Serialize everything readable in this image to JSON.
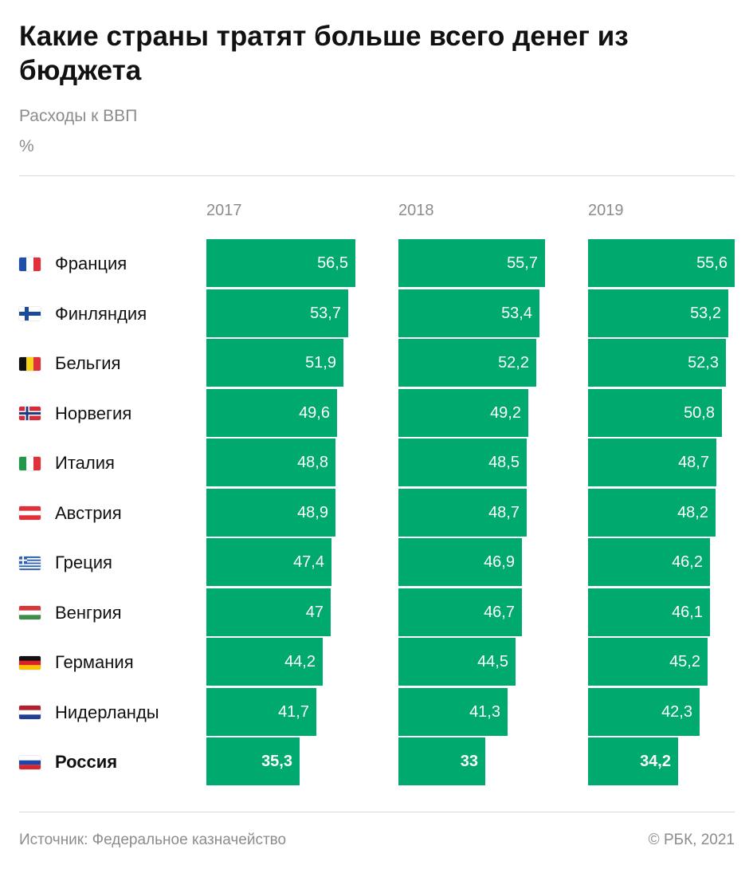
{
  "header": {
    "title": "Какие страны тратят больше всего денег из бюджета",
    "subtitle": "Расходы к ВВП",
    "unit": "%"
  },
  "footer": {
    "source": "Источник: Федеральное казначейство",
    "copyright": "© РБК, 2021"
  },
  "colors": {
    "bar": "#00a96e",
    "text_muted": "#8c8c8c"
  },
  "chart_data": {
    "type": "bar",
    "orientation": "horizontal",
    "layout": "small-multiples",
    "categories": [
      "Франция",
      "Финляндия",
      "Бельгия",
      "Норвегия",
      "Италия",
      "Австрия",
      "Греция",
      "Венгрия",
      "Германия",
      "Нидерланды",
      "Россия"
    ],
    "highlight": "Россия",
    "flags": [
      "flag-france-icon",
      "flag-finland-icon",
      "flag-belgium-icon",
      "flag-norway-icon",
      "flag-italy-icon",
      "flag-austria-icon",
      "flag-greece-icon",
      "flag-hungary-icon",
      "flag-germany-icon",
      "flag-netherlands-icon",
      "flag-russia-icon"
    ],
    "series": [
      {
        "name": "2017",
        "values": [
          56.5,
          53.7,
          51.9,
          49.6,
          48.8,
          48.9,
          47.4,
          47,
          44.2,
          41.7,
          35.3
        ],
        "labels": [
          "56,5",
          "53,7",
          "51,9",
          "49,6",
          "48,8",
          "48,9",
          "47,4",
          "47",
          "44,2",
          "41,7",
          "35,3"
        ]
      },
      {
        "name": "2018",
        "values": [
          55.7,
          53.4,
          52.2,
          49.2,
          48.5,
          48.7,
          46.9,
          46.7,
          44.5,
          41.3,
          33
        ],
        "labels": [
          "55,7",
          "53,4",
          "52,2",
          "49,2",
          "48,5",
          "48,7",
          "46,9",
          "46,7",
          "44,5",
          "41,3",
          "33"
        ]
      },
      {
        "name": "2019",
        "values": [
          55.6,
          53.2,
          52.3,
          50.8,
          48.7,
          48.2,
          46.2,
          46.1,
          45.2,
          42.3,
          34.2
        ],
        "labels": [
          "55,6",
          "53,2",
          "52,3",
          "50,8",
          "48,7",
          "48,2",
          "46,2",
          "46,1",
          "45,2",
          "42,3",
          "34,2"
        ]
      }
    ],
    "xlim": [
      0,
      56.5
    ],
    "grid": false,
    "legend": "none"
  }
}
